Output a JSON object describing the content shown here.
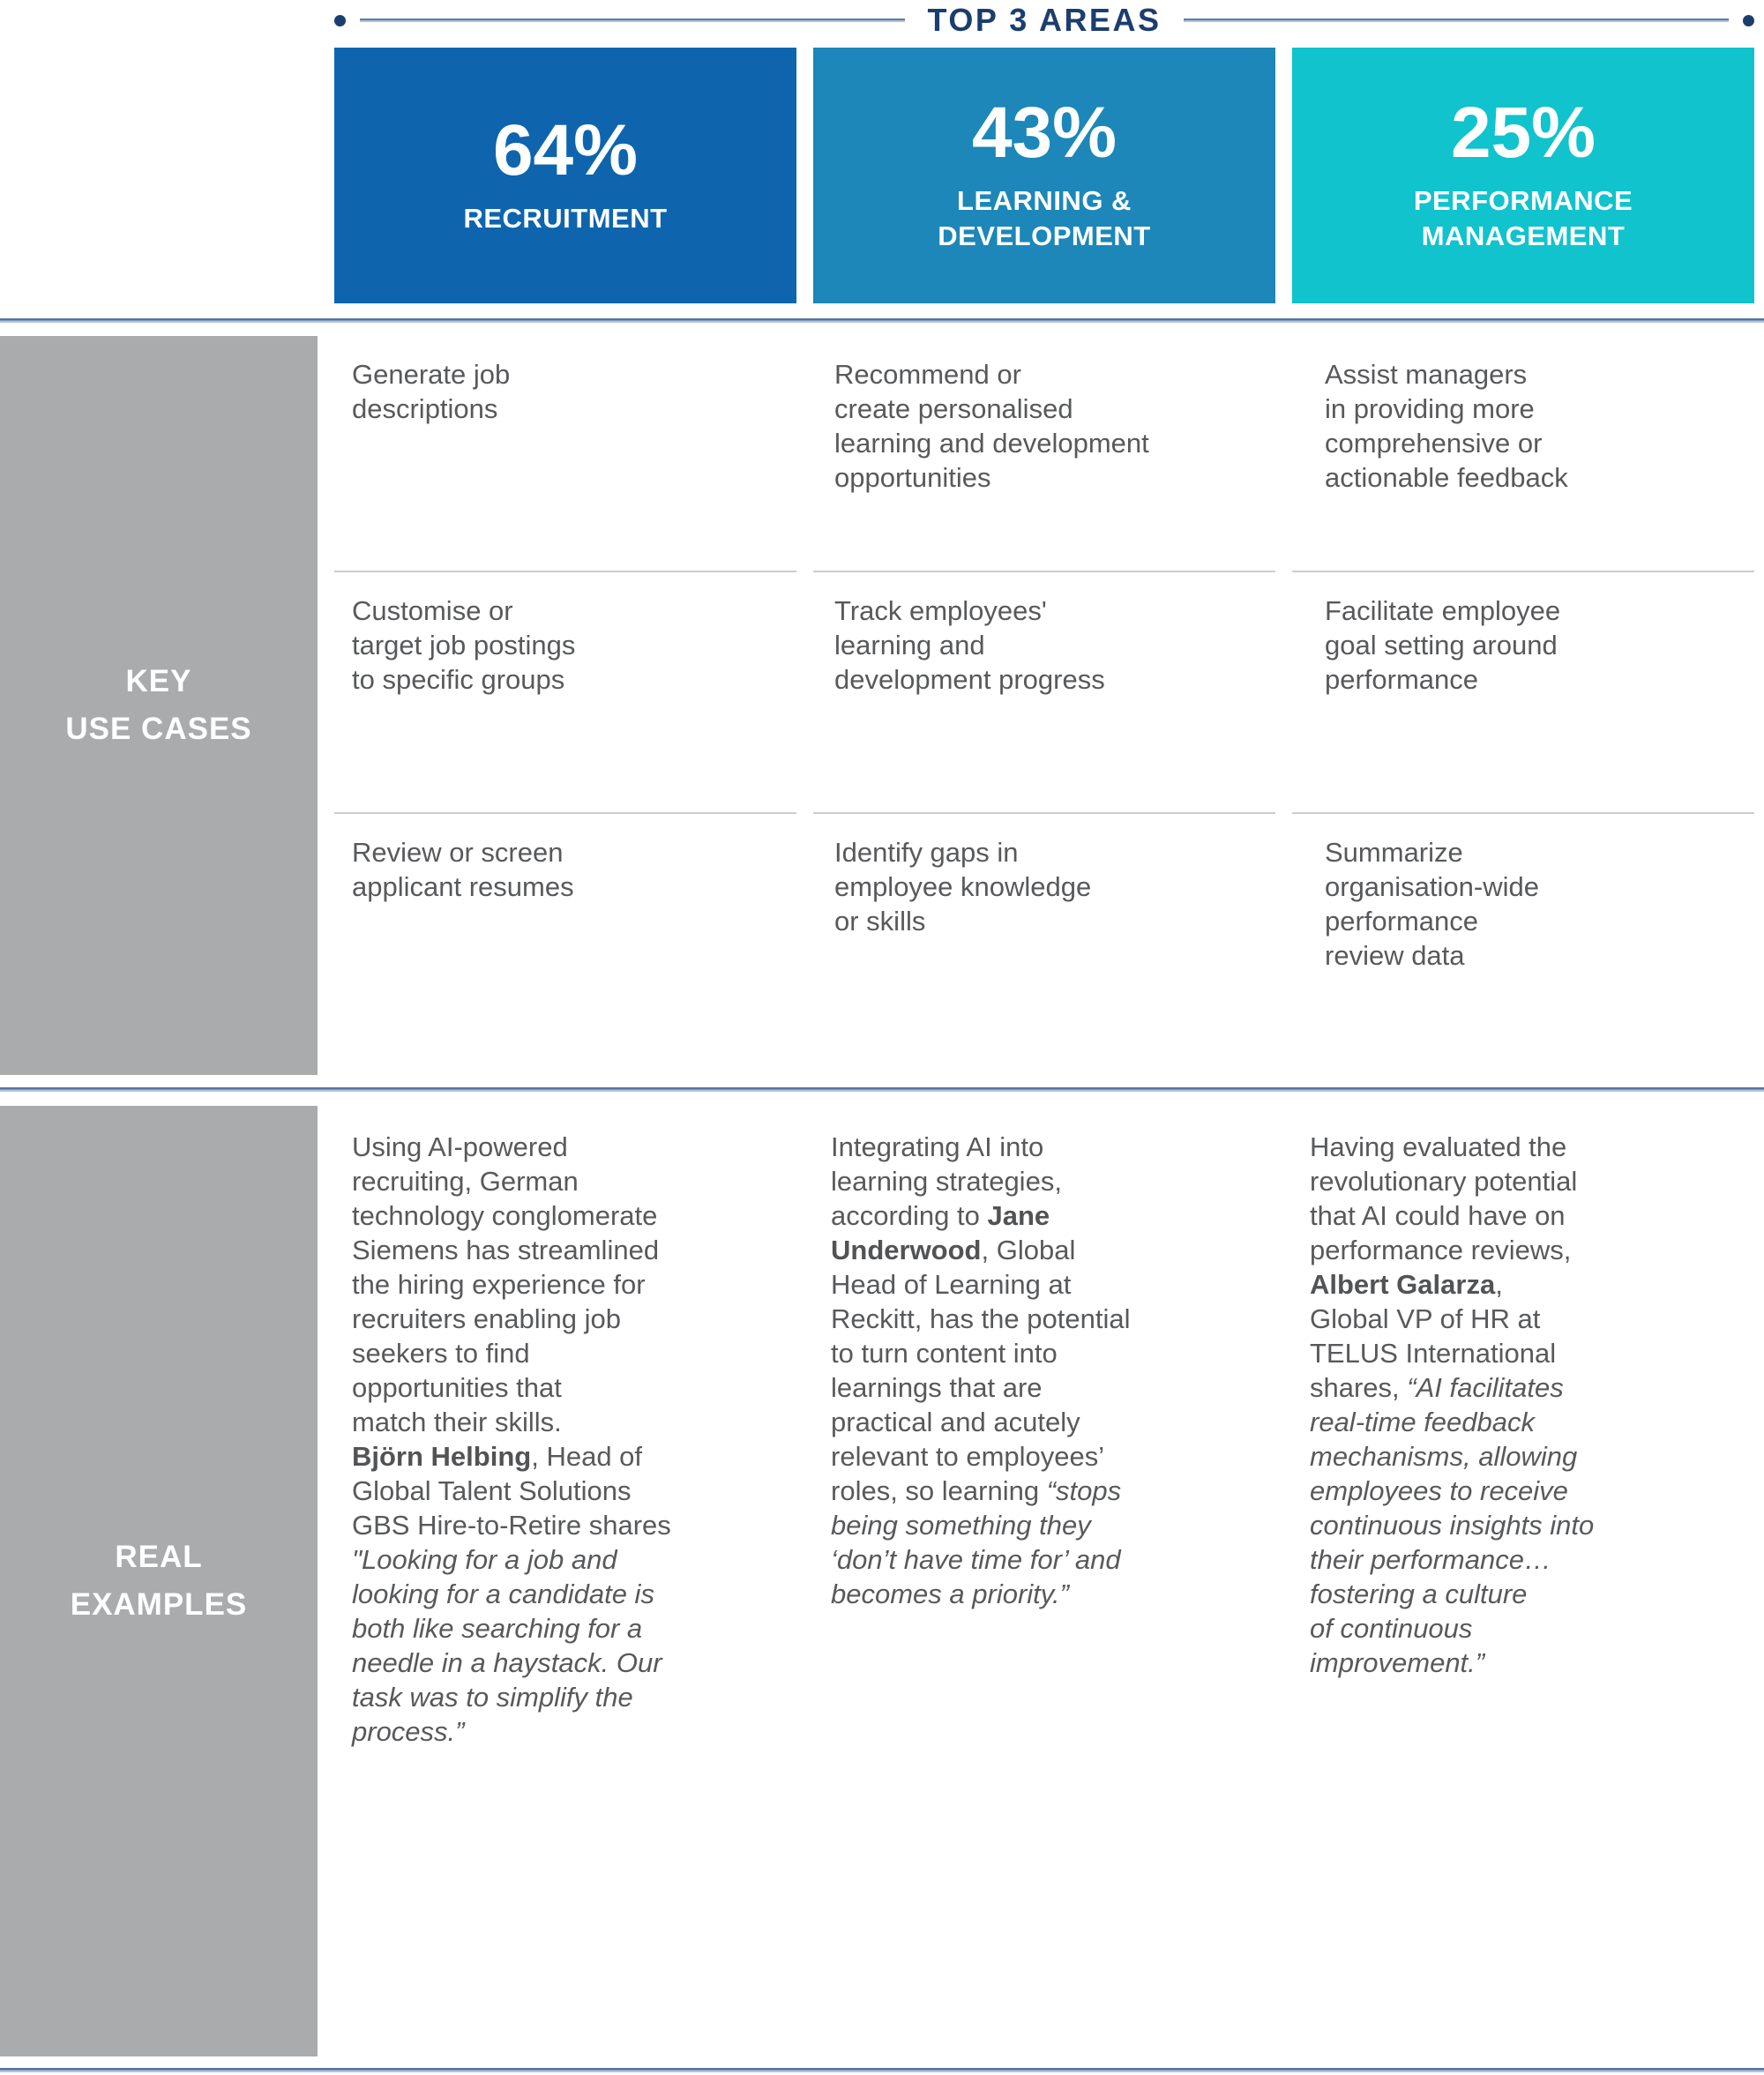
{
  "title": "TOP 3 AREAS",
  "colors": {
    "navy": "#1c3e6e",
    "recruitment_blue": "#0e65ae",
    "learning_blue": "#1c87b8",
    "performance_cyan": "#10c3cd",
    "row_header_gray": "#a9abad",
    "body_text_gray": "#58595b",
    "divider_light_gray": "#cbcccc"
  },
  "columns": [
    {
      "percent": "64%",
      "label": "RECRUITMENT",
      "color": "#0e65ae"
    },
    {
      "percent": "43%",
      "label": "LEARNING &\nDEVELOPMENT",
      "color": "#1c87b8"
    },
    {
      "percent": "25%",
      "label": "PERFORMANCE\nMANAGEMENT",
      "color": "#10c3cd"
    }
  ],
  "key_use_cases": {
    "label": "KEY\nUSE CASES",
    "rows": [
      [
        "Generate job\ndescriptions",
        "Recommend or\ncreate personalised\nlearning and development\nopportunities",
        "Assist managers\nin providing more\ncomprehensive or\nactionable feedback"
      ],
      [
        "Customise or\ntarget job postings\nto specific groups",
        "Track employees'\nlearning and\ndevelopment progress",
        "Facilitate employee\ngoal setting around\nperformance"
      ],
      [
        "Review or screen\napplicant resumes",
        "Identify gaps in\nemployee knowledge\nor skills",
        "Summarize\norganisation-wide\nperformance\nreview data"
      ]
    ]
  },
  "real_examples": {
    "label": "REAL\nEXAMPLES",
    "examples": [
      {
        "segments": [
          {
            "style": "normal",
            "text": "Using AI-powered\nrecruiting, German\ntechnology conglomerate\nSiemens has streamlined\nthe hiring experience for\nrecruiters enabling job\nseekers to find\nopportunities that\nmatch their skills.\n"
          },
          {
            "style": "bold",
            "text": "Björn Helbing"
          },
          {
            "style": "normal",
            "text": ", Head of\nGlobal Talent Solutions\nGBS Hire-to-Retire shares\n"
          },
          {
            "style": "italic",
            "text": "\"Looking for a job and\nlooking for a candidate is\nboth like searching for a\nneedle in a haystack. Our\ntask was to simplify the\nprocess.”"
          }
        ]
      },
      {
        "segments": [
          {
            "style": "normal",
            "text": "Integrating AI into\nlearning strategies,\naccording to "
          },
          {
            "style": "bold",
            "text": "Jane\nUnderwood"
          },
          {
            "style": "normal",
            "text": ", Global\nHead of Learning at\nReckitt, has the potential\nto turn content into\nlearnings that are\npractical and acutely\nrelevant to employees’\nroles, so learning "
          },
          {
            "style": "italic",
            "text": "“stops\nbeing something they\n‘don’t have time for’ and\nbecomes a priority.”"
          }
        ]
      },
      {
        "segments": [
          {
            "style": "normal",
            "text": "Having evaluated the\nrevolutionary potential\nthat AI could have on\nperformance reviews,\n"
          },
          {
            "style": "bold",
            "text": "Albert Galarza"
          },
          {
            "style": "normal",
            "text": ",\nGlobal VP of HR at\nTELUS International\nshares, "
          },
          {
            "style": "italic",
            "text": "“AI facilitates\nreal-time feedback\nmechanisms, allowing\nemployees to receive\ncontinuous insights into\ntheir performance…\nfostering a culture\nof continuous\nimprovement.”"
          }
        ]
      }
    ]
  }
}
